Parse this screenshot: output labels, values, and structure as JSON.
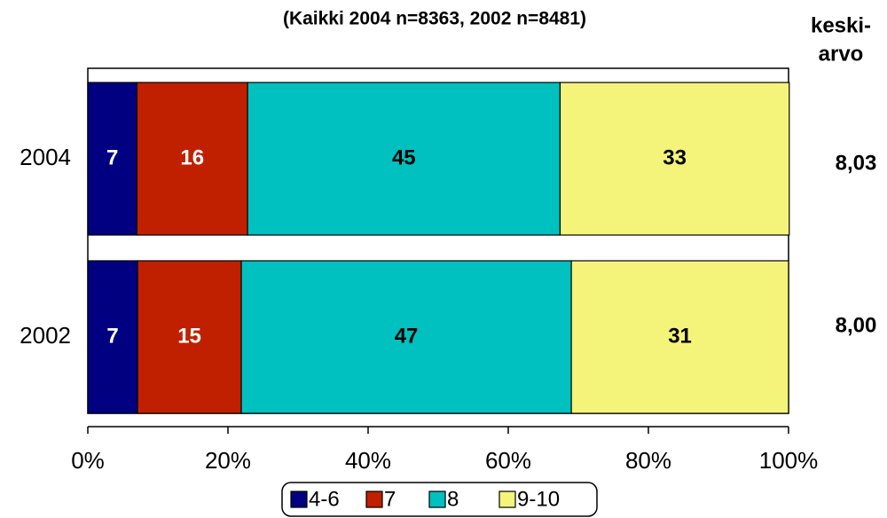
{
  "chart_data": {
    "type": "stacked-bar-horizontal",
    "title": "(Kaikki 2004 n=8363, 2002 n=8481)",
    "categories": [
      "2004",
      "2002"
    ],
    "series": [
      {
        "name": "4-6",
        "color": "#000080",
        "label_color": "#ffffff",
        "values": [
          7.0,
          7.1
        ],
        "value_labels": [
          "7",
          "7"
        ]
      },
      {
        "name": "7",
        "color": "#c02000",
        "label_color": "#ffffff",
        "values": [
          15.8,
          14.8
        ],
        "value_labels": [
          "16",
          "15"
        ]
      },
      {
        "name": "8",
        "color": "#00c0c0",
        "label_color": "#000000",
        "values": [
          44.6,
          47.1
        ],
        "value_labels": [
          "45",
          "47"
        ]
      },
      {
        "name": "9-10",
        "color": "#f4f47a",
        "label_color": "#000000",
        "values": [
          32.7,
          31.0
        ],
        "value_labels": [
          "33",
          "31"
        ]
      }
    ],
    "mean_header": [
      "keski-",
      "arvo"
    ],
    "means": [
      "8,03",
      "8,00"
    ],
    "xlim": [
      0,
      100
    ],
    "xticks": [
      {
        "value": 0,
        "label": "0%"
      },
      {
        "value": 20,
        "label": "20%"
      },
      {
        "value": 40,
        "label": "40%"
      },
      {
        "value": 60,
        "label": "60%"
      },
      {
        "value": 80,
        "label": "80%"
      },
      {
        "value": 100,
        "label": "100%"
      }
    ],
    "legend": "bottom"
  }
}
